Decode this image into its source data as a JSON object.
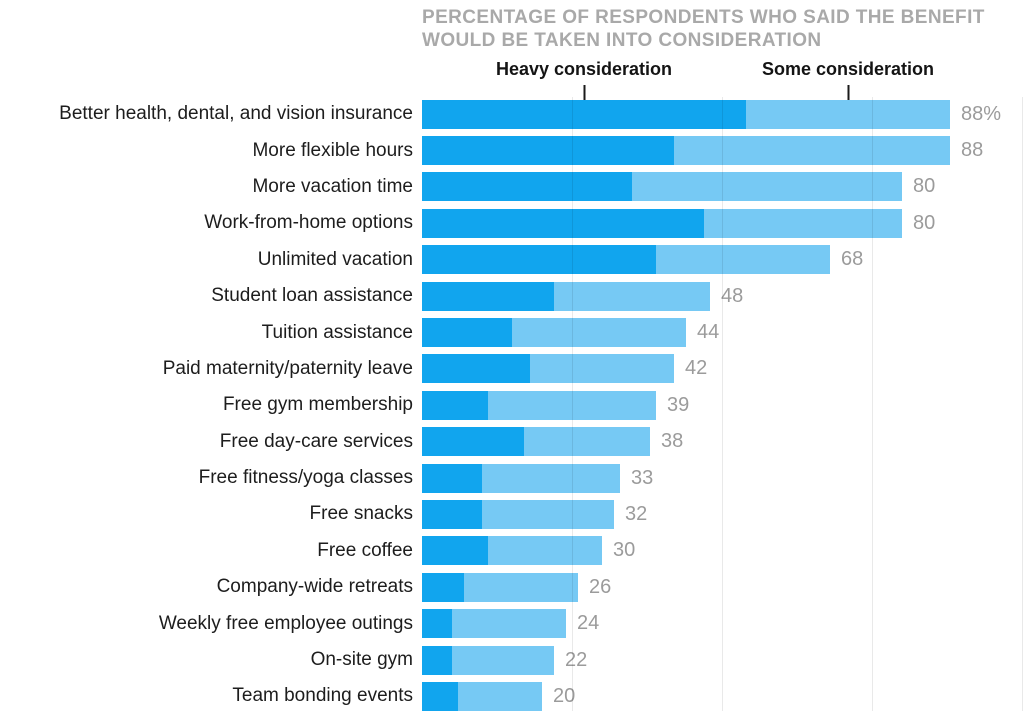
{
  "title": {
    "line1": "PERCENTAGE OF RESPONDENTS WHO SAID THE BENEFIT",
    "line2": "WOULD BE TAKEN INTO CONSIDERATION"
  },
  "legend": {
    "heavy": {
      "label": "Heavy consideration",
      "pointer_value": 27
    },
    "some": {
      "label": "Some consideration",
      "pointer_value": 71
    }
  },
  "colors": {
    "heavy": "#11a5ee",
    "some": "#76c9f4",
    "grid": "#e3e3e3",
    "value_label": "#9b9b9b",
    "title_text": "#a9a9a9",
    "legend_text": "#141414"
  },
  "chart_data": {
    "type": "bar",
    "orientation": "horizontal",
    "stacked": true,
    "title": "Percentage of respondents who said the benefit would be taken into consideration",
    "xlim": [
      0,
      100
    ],
    "gridlines_at": [
      25,
      50,
      75,
      100
    ],
    "grid": true,
    "legend_position": "top",
    "categories": [
      "Better health, dental, and vision insurance",
      "More flexible hours",
      "More vacation time",
      "Work-from-home options",
      "Unlimited vacation",
      "Student loan assistance",
      "Tuition assistance",
      "Paid maternity/paternity leave",
      "Free gym membership",
      "Free day-care services",
      "Free fitness/yoga classes",
      "Free snacks",
      "Free coffee",
      "Company-wide retreats",
      "Weekly free employee outings",
      "On-site gym",
      "Team bonding events"
    ],
    "series": [
      {
        "name": "Heavy consideration",
        "values": [
          54,
          42,
          35,
          47,
          39,
          22,
          15,
          18,
          11,
          17,
          10,
          10,
          11,
          7,
          5,
          5,
          6
        ]
      },
      {
        "name": "Some consideration",
        "values": [
          34,
          46,
          45,
          33,
          29,
          26,
          29,
          24,
          28,
          21,
          23,
          22,
          19,
          19,
          19,
          17,
          14
        ]
      }
    ],
    "totals": [
      88,
      88,
      80,
      80,
      68,
      48,
      44,
      42,
      39,
      38,
      33,
      32,
      30,
      26,
      24,
      22,
      20
    ],
    "total_labels": [
      "88%",
      "88",
      "80",
      "80",
      "68",
      "48",
      "44",
      "42",
      "39",
      "38",
      "33",
      "32",
      "30",
      "26",
      "24",
      "22",
      "20"
    ]
  }
}
